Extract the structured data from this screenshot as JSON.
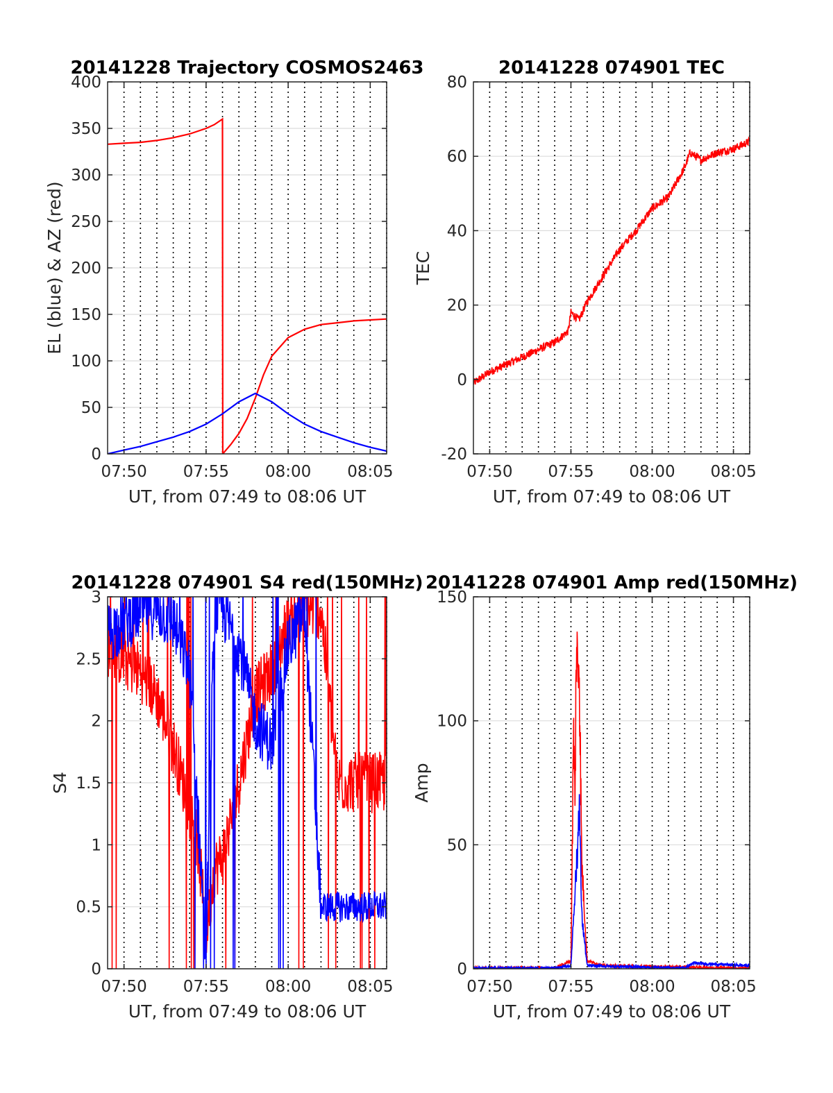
{
  "colors": {
    "red": "#ff0000",
    "blue": "#0000ff",
    "axis": "#262626",
    "grid": "#dcdcdc",
    "vline": "#000000"
  },
  "chart_data": [
    {
      "id": "trajectory",
      "type": "line",
      "title": "20141228 Trajectory COSMOS2463",
      "xlabel": "UT, from 07:49 to 08:06 UT",
      "ylabel": "EL (blue) & AZ (red)",
      "xlim": [
        "07:49:00",
        "08:06:00"
      ],
      "ylim": [
        0,
        400
      ],
      "yticks": [
        0,
        50,
        100,
        150,
        200,
        250,
        300,
        350,
        400
      ],
      "xticks": [
        "07:50",
        "07:55",
        "08:00",
        "08:05"
      ],
      "grid": true,
      "vertical_dotted_lines_every_minutes": 1,
      "series": [
        {
          "color": "red",
          "x": [
            "07:49:00",
            "07:50:00",
            "07:51:00",
            "07:52:00",
            "07:53:00",
            "07:54:00",
            "07:55:00",
            "07:55:30",
            "07:56:00",
            "07:56:01",
            "07:56:30",
            "07:57:00",
            "07:57:30",
            "07:58:00",
            "07:58:30",
            "07:59:00",
            "08:00:00",
            "08:01:00",
            "08:02:00",
            "08:03:00",
            "08:04:00",
            "08:05:00",
            "08:06:00"
          ],
          "values": [
            333,
            334,
            335,
            337,
            340,
            344,
            350,
            354,
            360,
            0,
            10,
            22,
            38,
            60,
            85,
            105,
            125,
            134,
            139,
            141,
            143,
            144,
            145
          ]
        },
        {
          "color": "blue",
          "x": [
            "07:49:00",
            "07:50:00",
            "07:51:00",
            "07:52:00",
            "07:53:00",
            "07:54:00",
            "07:55:00",
            "07:56:00",
            "07:57:00",
            "07:58:00",
            "07:59:00",
            "08:00:00",
            "08:01:00",
            "08:02:00",
            "08:03:00",
            "08:04:00",
            "08:05:00",
            "08:06:00"
          ],
          "values": [
            0,
            4,
            8,
            13,
            18,
            24,
            32,
            43,
            56,
            65,
            56,
            43,
            32,
            24,
            18,
            12,
            7,
            3
          ]
        }
      ]
    },
    {
      "id": "tec",
      "type": "line",
      "title": "20141228 074901 TEC",
      "xlabel": "UT, from 07:49 to 08:06 UT",
      "ylabel": "TEC",
      "xlim": [
        "07:49:00",
        "08:06:00"
      ],
      "ylim": [
        -20,
        80
      ],
      "yticks": [
        -20,
        0,
        20,
        40,
        60,
        80
      ],
      "xticks": [
        "07:50",
        "07:55",
        "08:00",
        "08:05"
      ],
      "grid": true,
      "vertical_dotted_lines_every_minutes": 1,
      "series": [
        {
          "color": "red",
          "x": [
            "07:49:00",
            "07:50:00",
            "07:51:00",
            "07:52:00",
            "07:53:00",
            "07:54:00",
            "07:54:50",
            "07:55:00",
            "07:55:30",
            "07:56:00",
            "07:57:00",
            "07:58:00",
            "07:59:00",
            "08:00:00",
            "08:01:00",
            "08:01:30",
            "08:02:00",
            "08:02:20",
            "08:03:00",
            "08:04:00",
            "08:05:00",
            "08:06:00"
          ],
          "values": [
            -1,
            2,
            4,
            6,
            8,
            10,
            13,
            18,
            16,
            21,
            28,
            35,
            40,
            46,
            49,
            53,
            57,
            61,
            59,
            61,
            62,
            64
          ]
        }
      ]
    },
    {
      "id": "s4",
      "type": "line",
      "title": "20141228 074901 S4 red(150MHz)",
      "xlabel": "UT, from 07:49 to 08:06 UT",
      "ylabel": "S4",
      "xlim": [
        "07:49:00",
        "08:06:00"
      ],
      "ylim": [
        0,
        3
      ],
      "yticks": [
        0,
        0.5,
        1,
        1.5,
        2,
        2.5,
        3
      ],
      "xticks": [
        "07:50",
        "07:55",
        "08:00",
        "08:05"
      ],
      "grid": true,
      "vertical_dotted_lines_every_minutes": 1,
      "series": [
        {
          "color": "red",
          "x": [
            "07:49:00",
            "07:50:00",
            "07:51:00",
            "07:52:00",
            "07:53:00",
            "07:54:00",
            "07:54:30",
            "07:55:00",
            "07:55:30",
            "07:56:00",
            "07:57:00",
            "07:58:00",
            "07:59:00",
            "08:00:00",
            "08:01:00",
            "08:02:00",
            "08:03:00",
            "08:04:00",
            "08:05:00",
            "08:06:00"
          ],
          "values": [
            2.6,
            2.5,
            2.4,
            2.2,
            1.8,
            1.3,
            1.0,
            0.3,
            0.8,
            0.9,
            1.5,
            2.2,
            2.4,
            2.8,
            2.9,
            2.9,
            1.5,
            1.5,
            1.5,
            1.5
          ]
        },
        {
          "color": "blue",
          "x": [
            "07:49:00",
            "07:50:00",
            "07:51:00",
            "07:52:00",
            "07:53:00",
            "07:54:00",
            "07:55:00",
            "07:55:30",
            "07:56:00",
            "07:57:00",
            "07:58:00",
            "07:59:00",
            "08:00:00",
            "08:01:00",
            "08:02:00",
            "08:03:00",
            "08:04:00",
            "08:05:00",
            "08:06:00"
          ],
          "values": [
            2.7,
            2.8,
            2.9,
            2.9,
            2.8,
            2.4,
            0.1,
            2.9,
            2.9,
            2.6,
            2.0,
            1.8,
            2.6,
            2.9,
            0.5,
            0.5,
            0.5,
            0.5,
            0.5
          ]
        }
      ]
    },
    {
      "id": "amp",
      "type": "line",
      "title": "20141228 074901 Amp red(150MHz)",
      "xlabel": "UT, from 07:49 to 08:06 UT",
      "ylabel": "Amp",
      "xlim": [
        "07:49:00",
        "08:06:00"
      ],
      "ylim": [
        0,
        150
      ],
      "yticks": [
        0,
        50,
        100,
        150
      ],
      "xticks": [
        "07:50",
        "07:55",
        "08:00",
        "08:05"
      ],
      "grid": true,
      "vertical_dotted_lines_every_minutes": 1,
      "series": [
        {
          "color": "red",
          "x": [
            "07:49:00",
            "07:54:00",
            "07:55:00",
            "07:55:10",
            "07:55:15",
            "07:55:20",
            "07:55:25",
            "07:55:30",
            "07:55:40",
            "07:56:00",
            "07:57:00",
            "08:06:00"
          ],
          "values": [
            0,
            0,
            3,
            90,
            60,
            124,
            110,
            120,
            40,
            3,
            1,
            0
          ]
        },
        {
          "color": "blue",
          "x": [
            "07:49:00",
            "07:54:00",
            "07:55:00",
            "07:55:15",
            "07:55:25",
            "07:55:30",
            "07:55:40",
            "07:56:00",
            "08:02:00",
            "08:02:30",
            "08:06:00"
          ],
          "values": [
            0,
            0,
            1,
            30,
            45,
            66,
            20,
            1,
            0,
            2,
            1
          ]
        }
      ]
    }
  ]
}
